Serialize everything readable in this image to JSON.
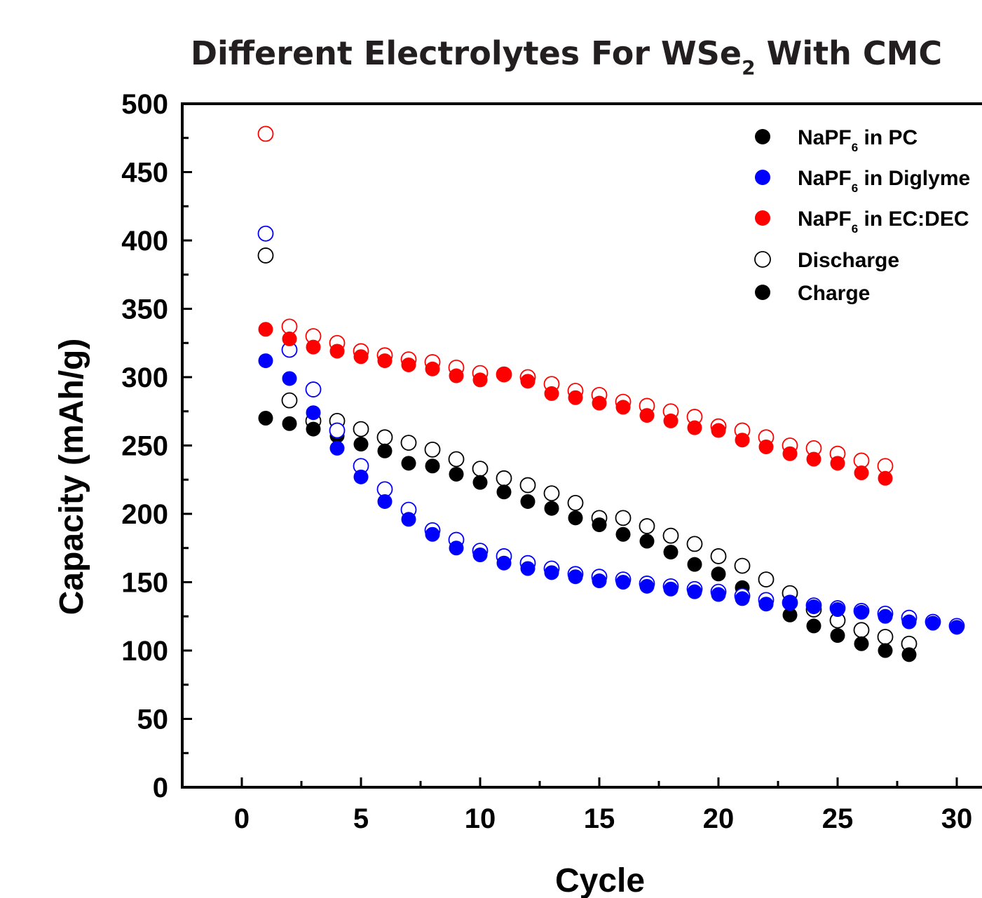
{
  "chart_data": {
    "type": "scatter",
    "title": "Different Electrolytes For WSe",
    "title_subscript": "2",
    "title_suffix": " With CMC",
    "xlabel": "Cycle",
    "ylabel": "Capacity (mAh/g)",
    "xlim": [
      -2.5,
      32
    ],
    "ylim": [
      0,
      500
    ],
    "xticks": [
      0,
      5,
      10,
      15,
      20,
      25,
      30
    ],
    "yticks": [
      0,
      50,
      100,
      150,
      200,
      250,
      300,
      350,
      400,
      450,
      500
    ],
    "grid": false,
    "legend_position": "top-right",
    "legend": [
      {
        "prefix": "NaPF",
        "sub": "6",
        "suffix": " in PC",
        "color": "#000000",
        "marker": "filled"
      },
      {
        "prefix": "NaPF",
        "sub": "6",
        "suffix": " in Diglyme",
        "color": "#0000ff",
        "marker": "filled"
      },
      {
        "prefix": "NaPF",
        "sub": "6",
        "suffix": " in EC:DEC",
        "color": "#ff0000",
        "marker": "filled"
      },
      {
        "prefix": "Discharge",
        "sub": "",
        "suffix": "",
        "color": "#000000",
        "marker": "open"
      },
      {
        "prefix": "Charge",
        "sub": "",
        "suffix": "",
        "color": "#000000",
        "marker": "filled"
      }
    ],
    "series": [
      {
        "electrolyte": "PC",
        "mode": "discharge",
        "color": "#000000",
        "marker": "open",
        "x": [
          1,
          2,
          3,
          4,
          5,
          6,
          7,
          8,
          9,
          10,
          11,
          12,
          13,
          14,
          15,
          16,
          17,
          18,
          19,
          20,
          21,
          22,
          23,
          24,
          25,
          26,
          27,
          28
        ],
        "y": [
          389,
          283,
          268,
          268,
          262,
          256,
          252,
          247,
          240,
          233,
          226,
          221,
          215,
          208,
          197,
          197,
          191,
          184,
          178,
          169,
          162,
          152,
          142,
          130,
          122,
          115,
          110,
          105
        ]
      },
      {
        "electrolyte": "PC",
        "mode": "charge",
        "color": "#000000",
        "marker": "filled",
        "x": [
          1,
          2,
          3,
          4,
          5,
          6,
          7,
          8,
          9,
          10,
          11,
          12,
          13,
          14,
          15,
          16,
          17,
          18,
          19,
          20,
          21,
          22,
          23,
          24,
          25,
          26,
          27,
          28
        ],
        "y": [
          270,
          266,
          262,
          257,
          251,
          246,
          237,
          235,
          229,
          223,
          216,
          209,
          204,
          197,
          192,
          185,
          180,
          172,
          163,
          156,
          146,
          135,
          126,
          118,
          111,
          105,
          100,
          97
        ]
      },
      {
        "electrolyte": "Diglyme",
        "mode": "discharge",
        "color": "#0000ff",
        "marker": "open",
        "x": [
          1,
          2,
          3,
          4,
          5,
          6,
          7,
          8,
          9,
          10,
          11,
          12,
          13,
          14,
          15,
          16,
          17,
          18,
          19,
          20,
          21,
          22,
          23,
          24,
          25,
          26,
          27,
          28,
          29,
          30
        ],
        "y": [
          405,
          320,
          291,
          261,
          235,
          218,
          203,
          188,
          181,
          173,
          169,
          164,
          160,
          156,
          154,
          152,
          149,
          147,
          145,
          143,
          140,
          137,
          135,
          133,
          131,
          129,
          127,
          124,
          121,
          118
        ]
      },
      {
        "electrolyte": "Diglyme",
        "mode": "charge",
        "color": "#0000ff",
        "marker": "filled",
        "x": [
          1,
          2,
          3,
          4,
          5,
          6,
          7,
          8,
          9,
          10,
          11,
          12,
          13,
          14,
          15,
          16,
          17,
          18,
          19,
          20,
          21,
          22,
          23,
          24,
          25,
          26,
          27,
          28,
          29,
          30
        ],
        "y": [
          312,
          299,
          274,
          248,
          227,
          209,
          196,
          185,
          175,
          170,
          164,
          160,
          157,
          154,
          151,
          150,
          147,
          145,
          143,
          141,
          138,
          134,
          135,
          132,
          130,
          128,
          125,
          121,
          120,
          117
        ]
      },
      {
        "electrolyte": "EC:DEC",
        "mode": "discharge",
        "color": "#ff0000",
        "marker": "open",
        "x": [
          1,
          2,
          3,
          4,
          5,
          6,
          7,
          8,
          9,
          10,
          11,
          12,
          13,
          14,
          15,
          16,
          17,
          18,
          19,
          20,
          21,
          22,
          23,
          24,
          25,
          26,
          27
        ],
        "y": [
          478,
          337,
          330,
          325,
          319,
          316,
          313,
          311,
          307,
          303,
          302,
          300,
          295,
          290,
          287,
          282,
          279,
          275,
          271,
          264,
          261,
          256,
          250,
          248,
          244,
          239,
          235
        ]
      },
      {
        "electrolyte": "EC:DEC",
        "mode": "charge",
        "color": "#ff0000",
        "marker": "filled",
        "x": [
          1,
          2,
          3,
          4,
          5,
          6,
          7,
          8,
          9,
          10,
          11,
          12,
          13,
          14,
          15,
          16,
          17,
          18,
          19,
          20,
          21,
          22,
          23,
          24,
          25,
          26,
          27
        ],
        "y": [
          335,
          328,
          322,
          319,
          315,
          312,
          309,
          306,
          301,
          298,
          302,
          297,
          288,
          285,
          281,
          278,
          272,
          268,
          263,
          261,
          254,
          249,
          244,
          240,
          237,
          230,
          226
        ]
      }
    ]
  }
}
